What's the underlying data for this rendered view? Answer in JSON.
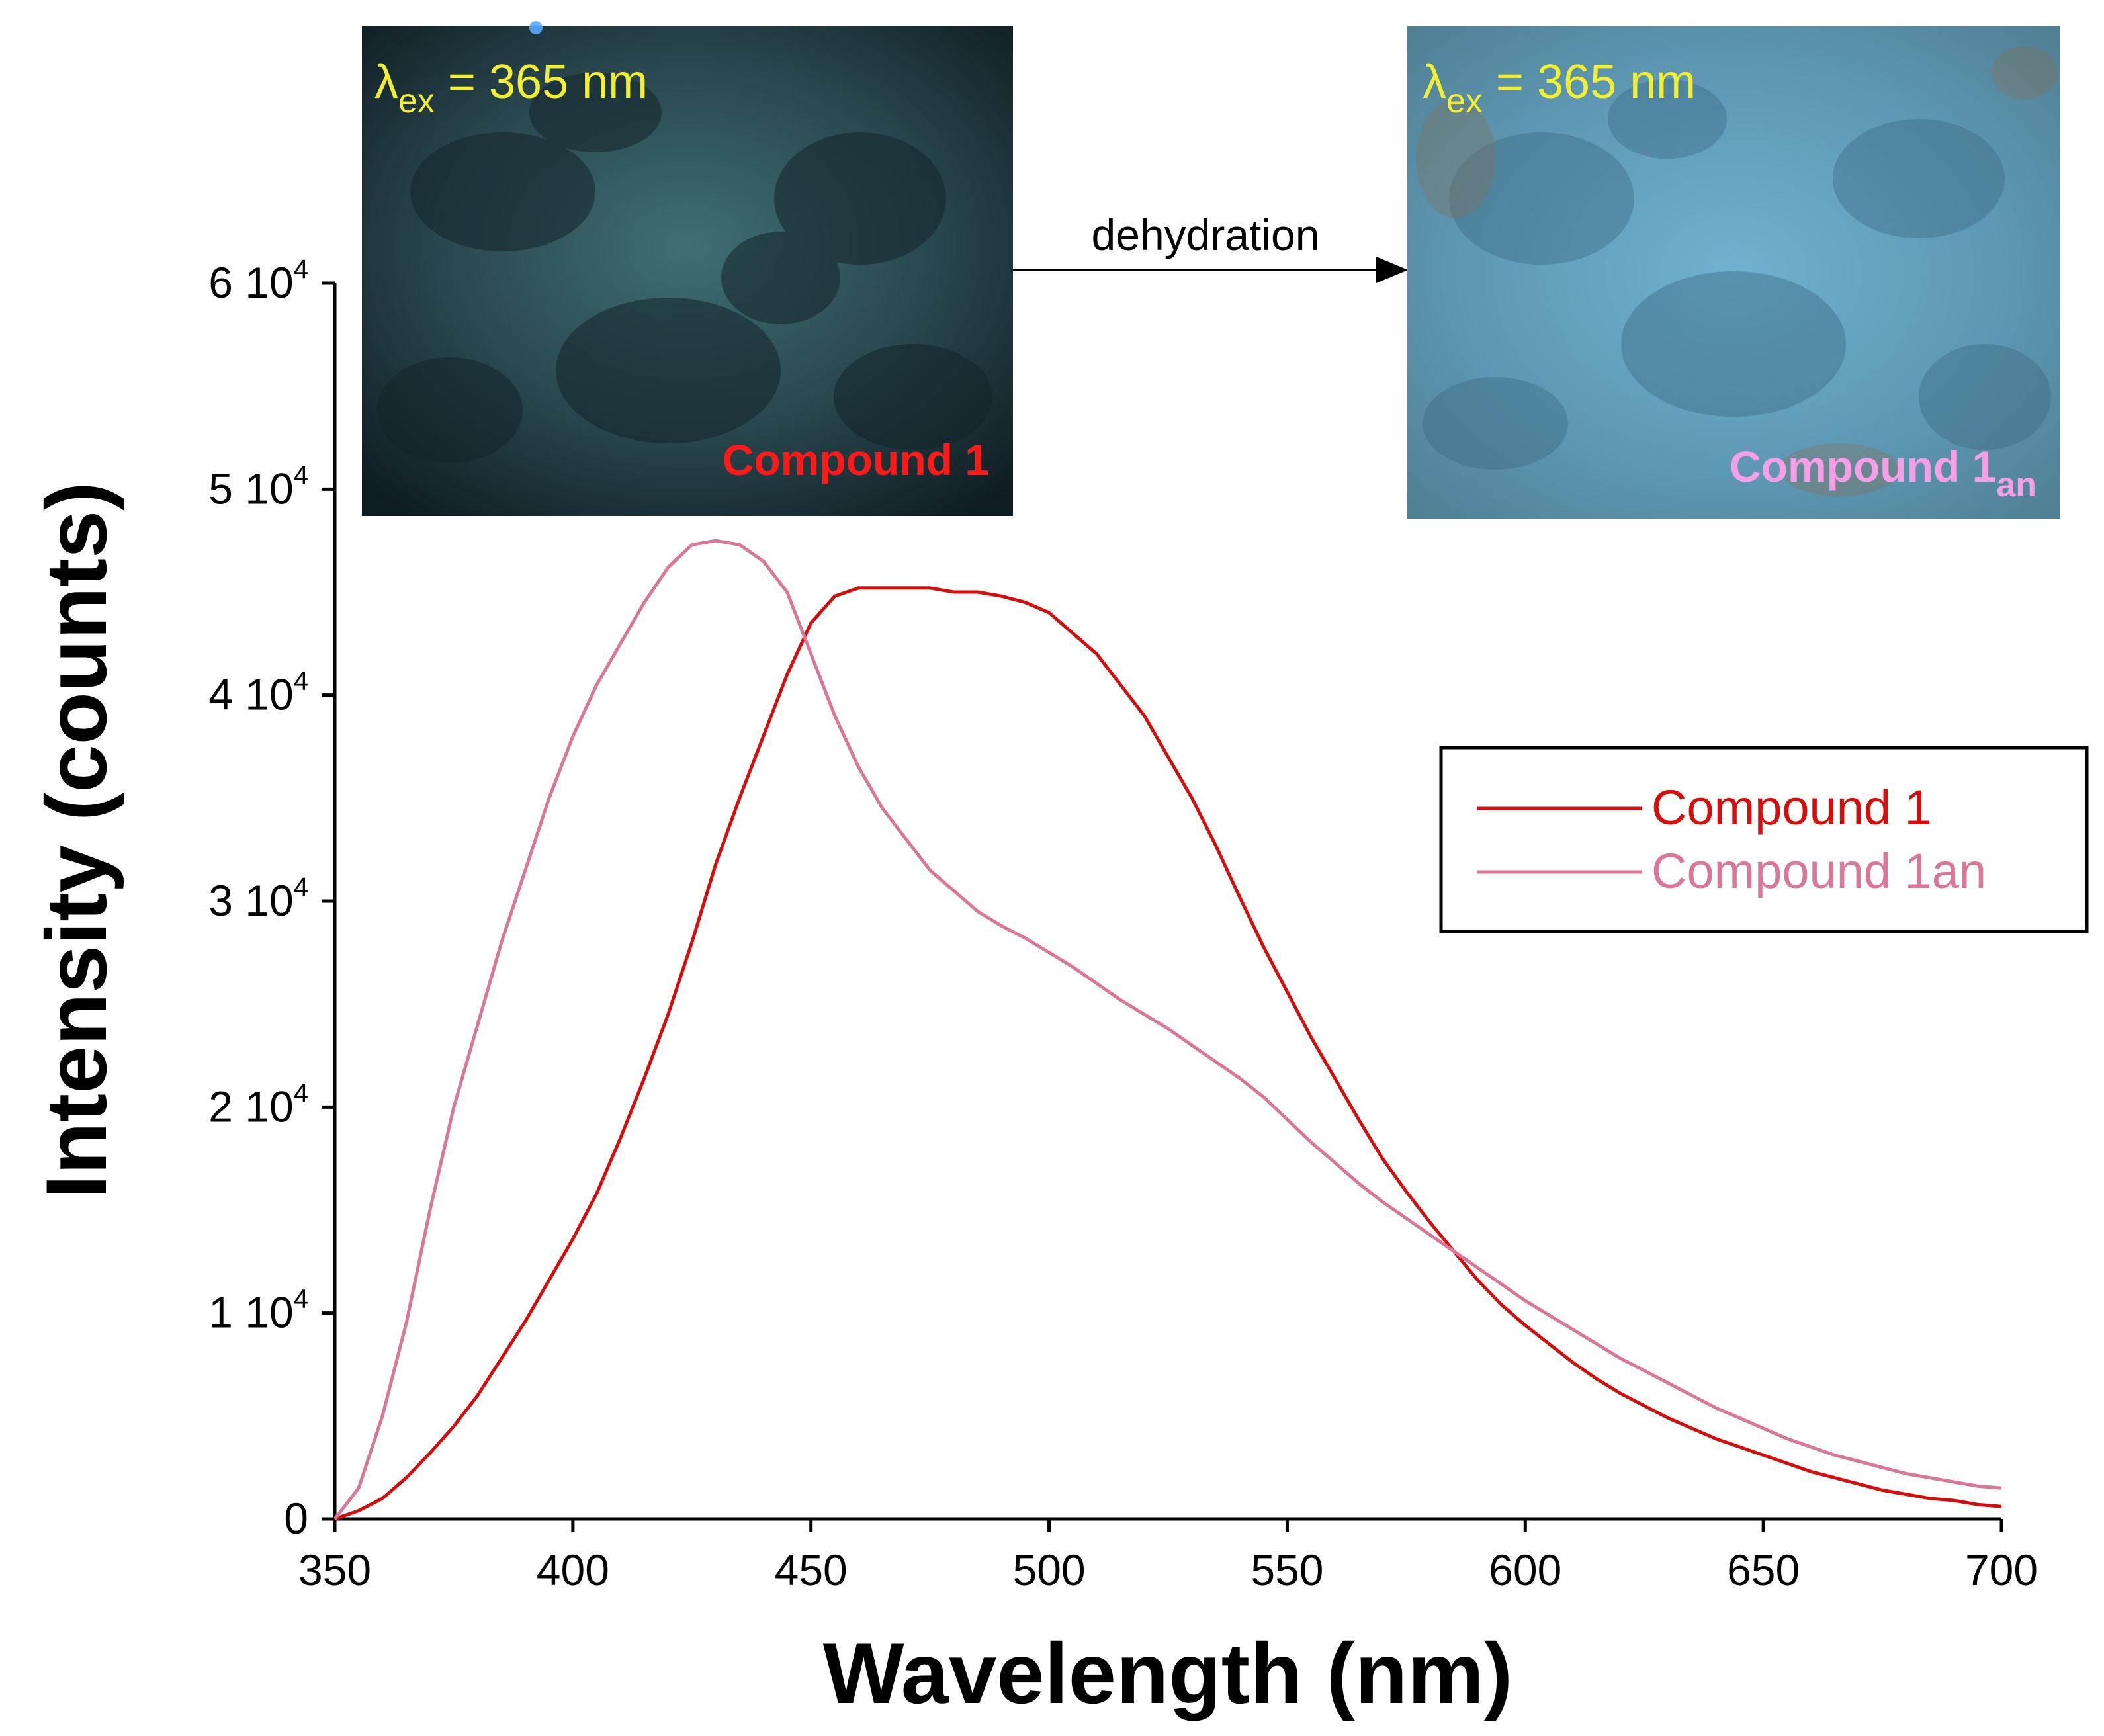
{
  "chart_data": {
    "type": "line",
    "xlabel": "Wavelength (nm)",
    "ylabel": "Intensity (counts)",
    "xlim": [
      350,
      700
    ],
    "ylim": [
      0,
      60000
    ],
    "x_ticks": [
      "350",
      "400",
      "450",
      "500",
      "550",
      "600",
      "650",
      "700"
    ],
    "y_ticks": [
      {
        "value": 0,
        "mantissa": "0",
        "exp": ""
      },
      {
        "value": 10000,
        "mantissa": "1 10",
        "exp": "4"
      },
      {
        "value": 20000,
        "mantissa": "2 10",
        "exp": "4"
      },
      {
        "value": 30000,
        "mantissa": "3 10",
        "exp": "4"
      },
      {
        "value": 40000,
        "mantissa": "4 10",
        "exp": "4"
      },
      {
        "value": 50000,
        "mantissa": "5 10",
        "exp": "4"
      },
      {
        "value": 60000,
        "mantissa": "6 10",
        "exp": "4"
      }
    ],
    "x": [
      350,
      355,
      360,
      365,
      370,
      375,
      380,
      385,
      390,
      395,
      400,
      405,
      410,
      415,
      420,
      425,
      430,
      435,
      440,
      445,
      450,
      455,
      460,
      465,
      470,
      475,
      480,
      485,
      490,
      495,
      500,
      505,
      510,
      515,
      520,
      525,
      530,
      535,
      540,
      545,
      550,
      555,
      560,
      565,
      570,
      575,
      580,
      585,
      590,
      595,
      600,
      605,
      610,
      615,
      620,
      625,
      630,
      635,
      640,
      645,
      650,
      655,
      660,
      665,
      670,
      675,
      680,
      685,
      690,
      695,
      700
    ],
    "series": [
      {
        "name": "Compound 1",
        "color": "#d40d0d",
        "values": [
          0,
          400,
          1000,
          2000,
          3200,
          4500,
          6000,
          7800,
          9600,
          11600,
          13600,
          15800,
          18500,
          21400,
          24500,
          28000,
          31800,
          35000,
          38000,
          41000,
          43500,
          44800,
          45200,
          45200,
          45200,
          45200,
          45000,
          45000,
          44800,
          44500,
          44000,
          43000,
          42000,
          40500,
          39000,
          37000,
          35000,
          32700,
          30200,
          27800,
          25600,
          23400,
          21400,
          19400,
          17500,
          15900,
          14400,
          13000,
          11600,
          10400,
          9400,
          8500,
          7600,
          6800,
          6100,
          5500,
          4900,
          4400,
          3900,
          3500,
          3100,
          2700,
          2300,
          2000,
          1700,
          1400,
          1200,
          1000,
          900,
          700,
          600
        ]
      },
      {
        "name": "Compound 1an",
        "color": "#d9769a",
        "values": [
          0,
          1500,
          5000,
          9500,
          15000,
          20000,
          24000,
          28000,
          31500,
          35000,
          38000,
          40500,
          42500,
          44500,
          46200,
          47300,
          47500,
          47300,
          46500,
          45000,
          42000,
          39000,
          36500,
          34500,
          33000,
          31500,
          30500,
          29500,
          28800,
          28200,
          27500,
          26800,
          26000,
          25200,
          24500,
          23800,
          23000,
          22200,
          21400,
          20500,
          19400,
          18300,
          17300,
          16300,
          15400,
          14600,
          13800,
          13000,
          12200,
          11400,
          10600,
          9900,
          9200,
          8500,
          7800,
          7200,
          6600,
          6000,
          5400,
          4900,
          4400,
          3900,
          3500,
          3100,
          2800,
          2500,
          2200,
          2000,
          1800,
          1600,
          1500
        ]
      }
    ],
    "legend": {
      "position": "right",
      "entries": [
        "Compound 1",
        "Compound 1an"
      ]
    },
    "insets": {
      "left": {
        "excitation_symbol": "λ",
        "excitation_sub": "ex",
        "excitation_value": " = 365 nm",
        "caption": "Compound 1",
        "caption_sub": "",
        "caption_color": "#ff1a1a",
        "excitation_color": "#f2ee35"
      },
      "right": {
        "excitation_symbol": "λ",
        "excitation_sub": "ex",
        "excitation_value": " = 365 nm",
        "caption": "Compound 1",
        "caption_sub": "an",
        "caption_color": "#f59fe6",
        "excitation_color": "#f2ee35"
      },
      "arrow_label": "dehydration"
    }
  }
}
